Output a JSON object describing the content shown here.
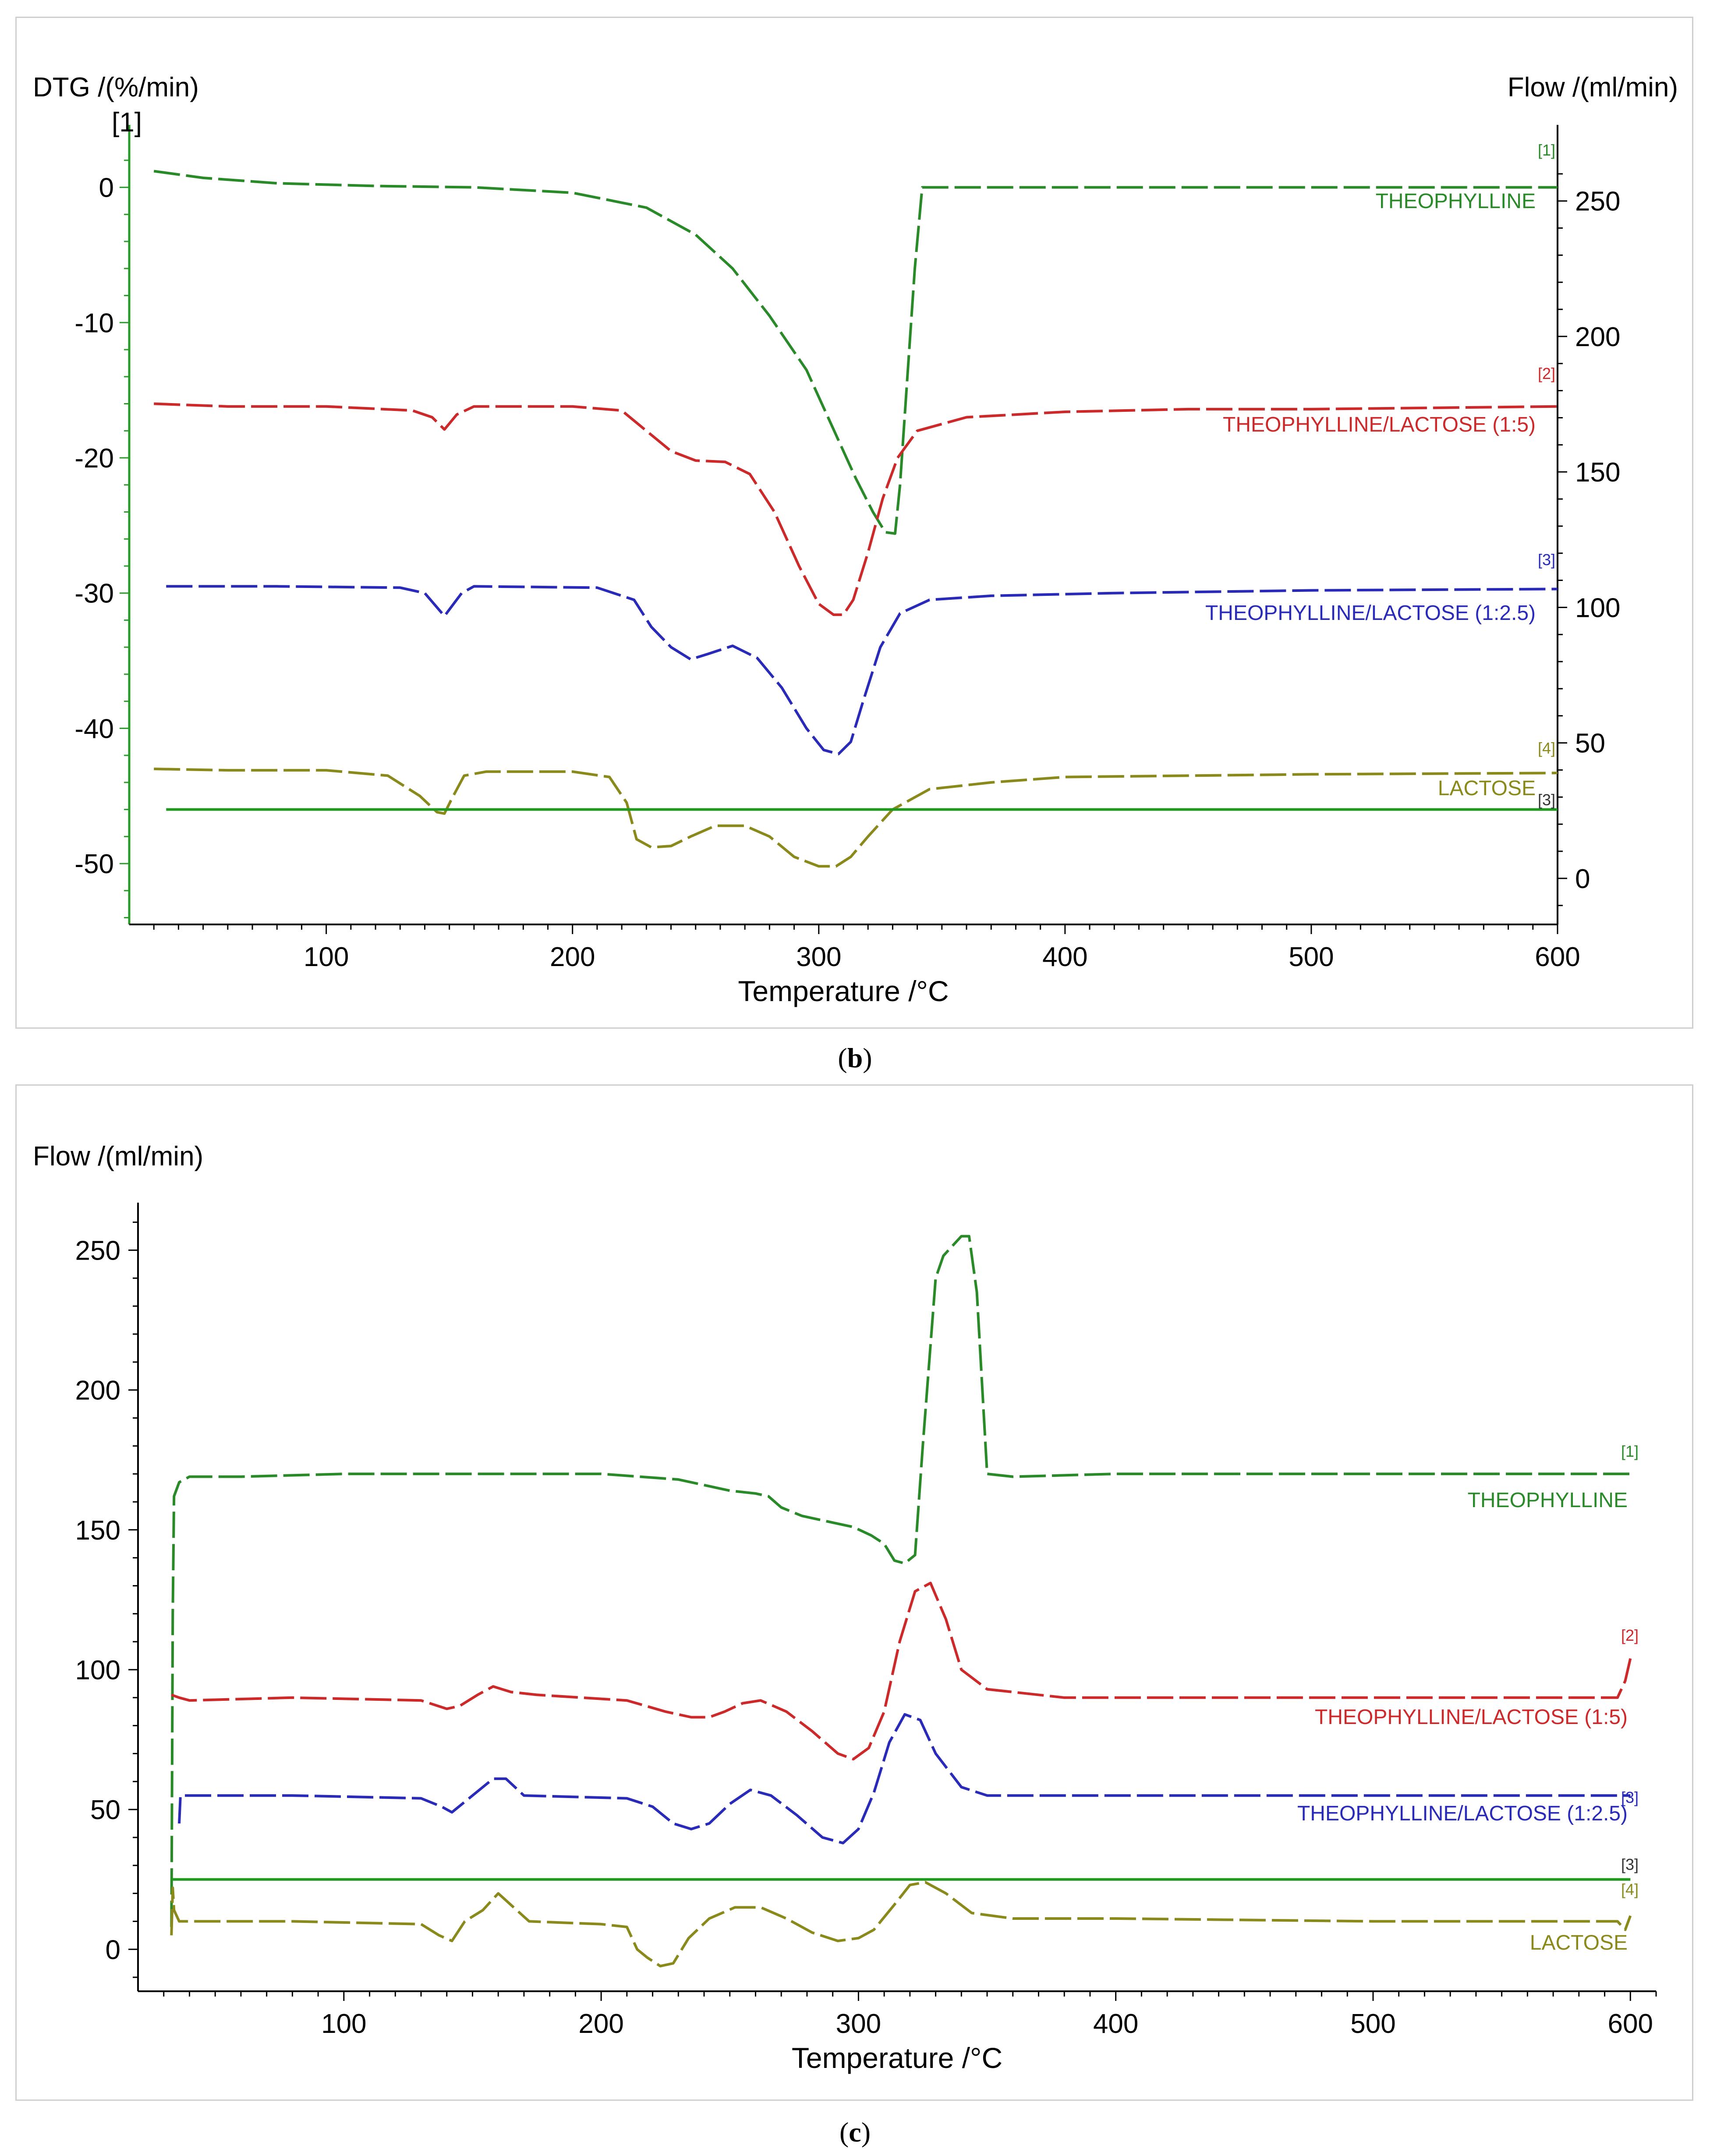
{
  "figure": {
    "caption_b": "b",
    "caption_c": "c"
  },
  "chart_data": [
    {
      "panel": "b",
      "type": "line",
      "xlabel": "Temperature /°C",
      "y1label": "DTG /(%/min)",
      "y1_curve_marker": "[1]",
      "y2label": "Flow /(ml/min)",
      "xlim": [
        20,
        600
      ],
      "xticks": [
        100,
        200,
        300,
        400,
        500,
        600
      ],
      "y1lim": [
        -54.5,
        3
      ],
      "y1ticks": [
        0,
        -10,
        -20,
        -30,
        -40,
        -50
      ],
      "y2lim": [
        -17,
        270
      ],
      "y2ticks": [
        0,
        50,
        100,
        150,
        200,
        250
      ],
      "grid": false,
      "series": [
        {
          "name": "THEOPHYLLINE",
          "marker": "[1]",
          "color": "#2a8a2a",
          "dash": "solid",
          "axis": "y1",
          "x": [
            30,
            50,
            80,
            120,
            160,
            200,
            230,
            250,
            265,
            280,
            295,
            305,
            315,
            322,
            327,
            331,
            333,
            336,
            339,
            342,
            346,
            400,
            500,
            600
          ],
          "y": [
            1.2,
            0.7,
            0.3,
            0.1,
            0,
            -0.4,
            -1.5,
            -3.5,
            -6,
            -9.5,
            -13.5,
            -17.5,
            -21.5,
            -24,
            -25.5,
            -25.6,
            -22,
            -14,
            -6,
            0,
            0,
            0,
            0,
            0
          ]
        },
        {
          "name": "THEOPHYLLINE/LACTOSE (1:5)",
          "marker": "[2]",
          "color": "#cc2a2a",
          "dash": "solid",
          "axis": "y1",
          "x": [
            30,
            60,
            100,
            135,
            143,
            148,
            153,
            160,
            200,
            220,
            230,
            240,
            250,
            262,
            272,
            282,
            292,
            300,
            306,
            310,
            314,
            320,
            326,
            332,
            340,
            360,
            400,
            450,
            500,
            600
          ],
          "y": [
            -16,
            -16.2,
            -16.2,
            -16.5,
            -17,
            -17.9,
            -16.8,
            -16.2,
            -16.2,
            -16.5,
            -18,
            -19.5,
            -20.2,
            -20.3,
            -21.2,
            -24,
            -28,
            -30.8,
            -31.6,
            -31.6,
            -30.5,
            -27,
            -23,
            -20,
            -18,
            -17,
            -16.6,
            -16.4,
            -16.4,
            -16.2
          ]
        },
        {
          "name": "THEOPHYLLINE/LACTOSE (1:2.5)",
          "marker": "[3]",
          "color": "#2a2ab8",
          "dash": "solid",
          "axis": "y1",
          "x": [
            35,
            80,
            130,
            140,
            148,
            155,
            160,
            210,
            225,
            232,
            240,
            248,
            255,
            265,
            275,
            285,
            295,
            302,
            308,
            313,
            318,
            325,
            333,
            345,
            370,
            420,
            500,
            600
          ],
          "y": [
            -29.5,
            -29.5,
            -29.6,
            -30,
            -31.7,
            -30,
            -29.5,
            -29.6,
            -30.5,
            -32.5,
            -34,
            -34.9,
            -34.5,
            -33.9,
            -34.8,
            -37,
            -40,
            -41.6,
            -41.9,
            -41,
            -38,
            -34,
            -31.5,
            -30.5,
            -30.2,
            -30,
            -29.8,
            -29.7
          ]
        },
        {
          "name": "LACTOSE",
          "marker": "[4]",
          "color": "#8a8a1c",
          "dash": "solid",
          "axis": "y1",
          "x": [
            30,
            60,
            100,
            125,
            138,
            145,
            148,
            151,
            156,
            165,
            200,
            215,
            222,
            226,
            232,
            240,
            248,
            258,
            270,
            280,
            290,
            300,
            307,
            313,
            320,
            330,
            345,
            370,
            400,
            500,
            600
          ],
          "y": [
            -43,
            -43.1,
            -43.1,
            -43.5,
            -45,
            -46.2,
            -46.3,
            -45.2,
            -43.5,
            -43.2,
            -43.2,
            -43.6,
            -45.5,
            -48.2,
            -48.8,
            -48.7,
            -48,
            -47.2,
            -47.2,
            -48,
            -49.5,
            -50.2,
            -50.2,
            -49.5,
            -48,
            -46,
            -44.5,
            -44,
            -43.6,
            -43.4,
            -43.3
          ]
        },
        {
          "name": "baseline",
          "marker": "[3]",
          "color": "#1f9a1f",
          "dash": "solid",
          "axis": "y1",
          "x": [
            35,
            600
          ],
          "y": [
            -46,
            -46
          ]
        }
      ]
    },
    {
      "panel": "c",
      "type": "line",
      "xlabel": "Temperature /°C",
      "ylabel": "Flow /(ml/min)",
      "xlim": [
        20,
        610
      ],
      "xticks": [
        100,
        200,
        300,
        400,
        500,
        600
      ],
      "ylim": [
        -15,
        267
      ],
      "yticks": [
        0,
        50,
        100,
        150,
        200,
        250
      ],
      "grid": false,
      "series": [
        {
          "name": "THEOPHYLLINE",
          "marker": "[1]",
          "color": "#2a8a2a",
          "dash": "dashed",
          "x": [
            33,
            33.5,
            34,
            36,
            40,
            60,
            100,
            150,
            200,
            230,
            250,
            260,
            265,
            270,
            278,
            288,
            298,
            305,
            310,
            314,
            318,
            322,
            325,
            330,
            333,
            340,
            343,
            346,
            350,
            360,
            400,
            600
          ],
          "y": [
            8,
            120,
            162,
            167,
            169,
            169,
            170,
            170,
            170,
            168,
            164,
            163,
            162,
            158,
            155,
            153,
            151,
            148,
            145,
            139,
            138,
            141,
            180,
            240,
            248,
            255,
            255,
            235,
            170,
            169,
            170,
            170
          ]
        },
        {
          "name": "THEOPHYLLINE/LACTOSE (1:5)",
          "marker": "[2]",
          "color": "#cc2a2a",
          "dash": "dashed",
          "x": [
            33,
            36,
            40,
            80,
            130,
            140,
            145,
            152,
            158,
            165,
            175,
            210,
            225,
            235,
            242,
            248,
            255,
            262,
            272,
            282,
            292,
            298,
            304,
            310,
            316,
            322,
            328,
            334,
            340,
            350,
            380,
            450,
            500,
            595,
            598,
            600
          ],
          "y": [
            91,
            90,
            89,
            90,
            89,
            86,
            87,
            91,
            94,
            92,
            91,
            89,
            85,
            83,
            83,
            85,
            88,
            89,
            85,
            78,
            70,
            68,
            72,
            85,
            110,
            128,
            131,
            118,
            100,
            93,
            90,
            90,
            90,
            90,
            96,
            104
          ]
        },
        {
          "name": "THEOPHYLLINE/LACTOSE (1:2.5)",
          "marker": "[3]",
          "color": "#2a2ab8",
          "dash": "dashed",
          "x": [
            36,
            36.5,
            37,
            40,
            80,
            130,
            138,
            142,
            150,
            158,
            163,
            170,
            210,
            220,
            228,
            235,
            242,
            250,
            258,
            266,
            276,
            286,
            294,
            300,
            306,
            312,
            318,
            324,
            330,
            340,
            350,
            380,
            450,
            600
          ],
          "y": [
            45,
            55,
            55,
            55,
            55,
            54,
            51,
            49,
            55,
            61,
            61,
            55,
            54,
            51,
            45,
            43,
            45,
            52,
            57,
            55,
            48,
            40,
            38,
            43,
            56,
            74,
            84,
            82,
            70,
            58,
            55,
            55,
            55,
            55
          ]
        },
        {
          "name": "LACTOSE",
          "marker": "[4]",
          "color": "#8a8a1c",
          "dash": "dashed",
          "x": [
            33,
            33.5,
            34,
            36,
            40,
            80,
            130,
            137,
            142,
            147,
            154,
            160,
            166,
            172,
            200,
            210,
            214,
            218,
            223,
            228,
            234,
            242,
            252,
            262,
            272,
            282,
            292,
            300,
            306,
            314,
            320,
            326,
            334,
            344,
            360,
            400,
            500,
            595,
            598,
            600
          ],
          "y": [
            5,
            22,
            14,
            10,
            10,
            10,
            9,
            5,
            3,
            10,
            14,
            20,
            15,
            10,
            9,
            8,
            0,
            -3,
            -6,
            -5,
            4,
            11,
            15,
            15,
            11,
            6,
            3,
            4,
            7,
            16,
            23,
            24,
            20,
            13,
            11,
            11,
            10,
            10,
            7,
            12
          ]
        },
        {
          "name": "baseline",
          "marker": "[3]",
          "color": "#1f9a1f",
          "dash": "solid",
          "x": [
            33,
            600
          ],
          "y": [
            25,
            25
          ]
        }
      ]
    }
  ]
}
